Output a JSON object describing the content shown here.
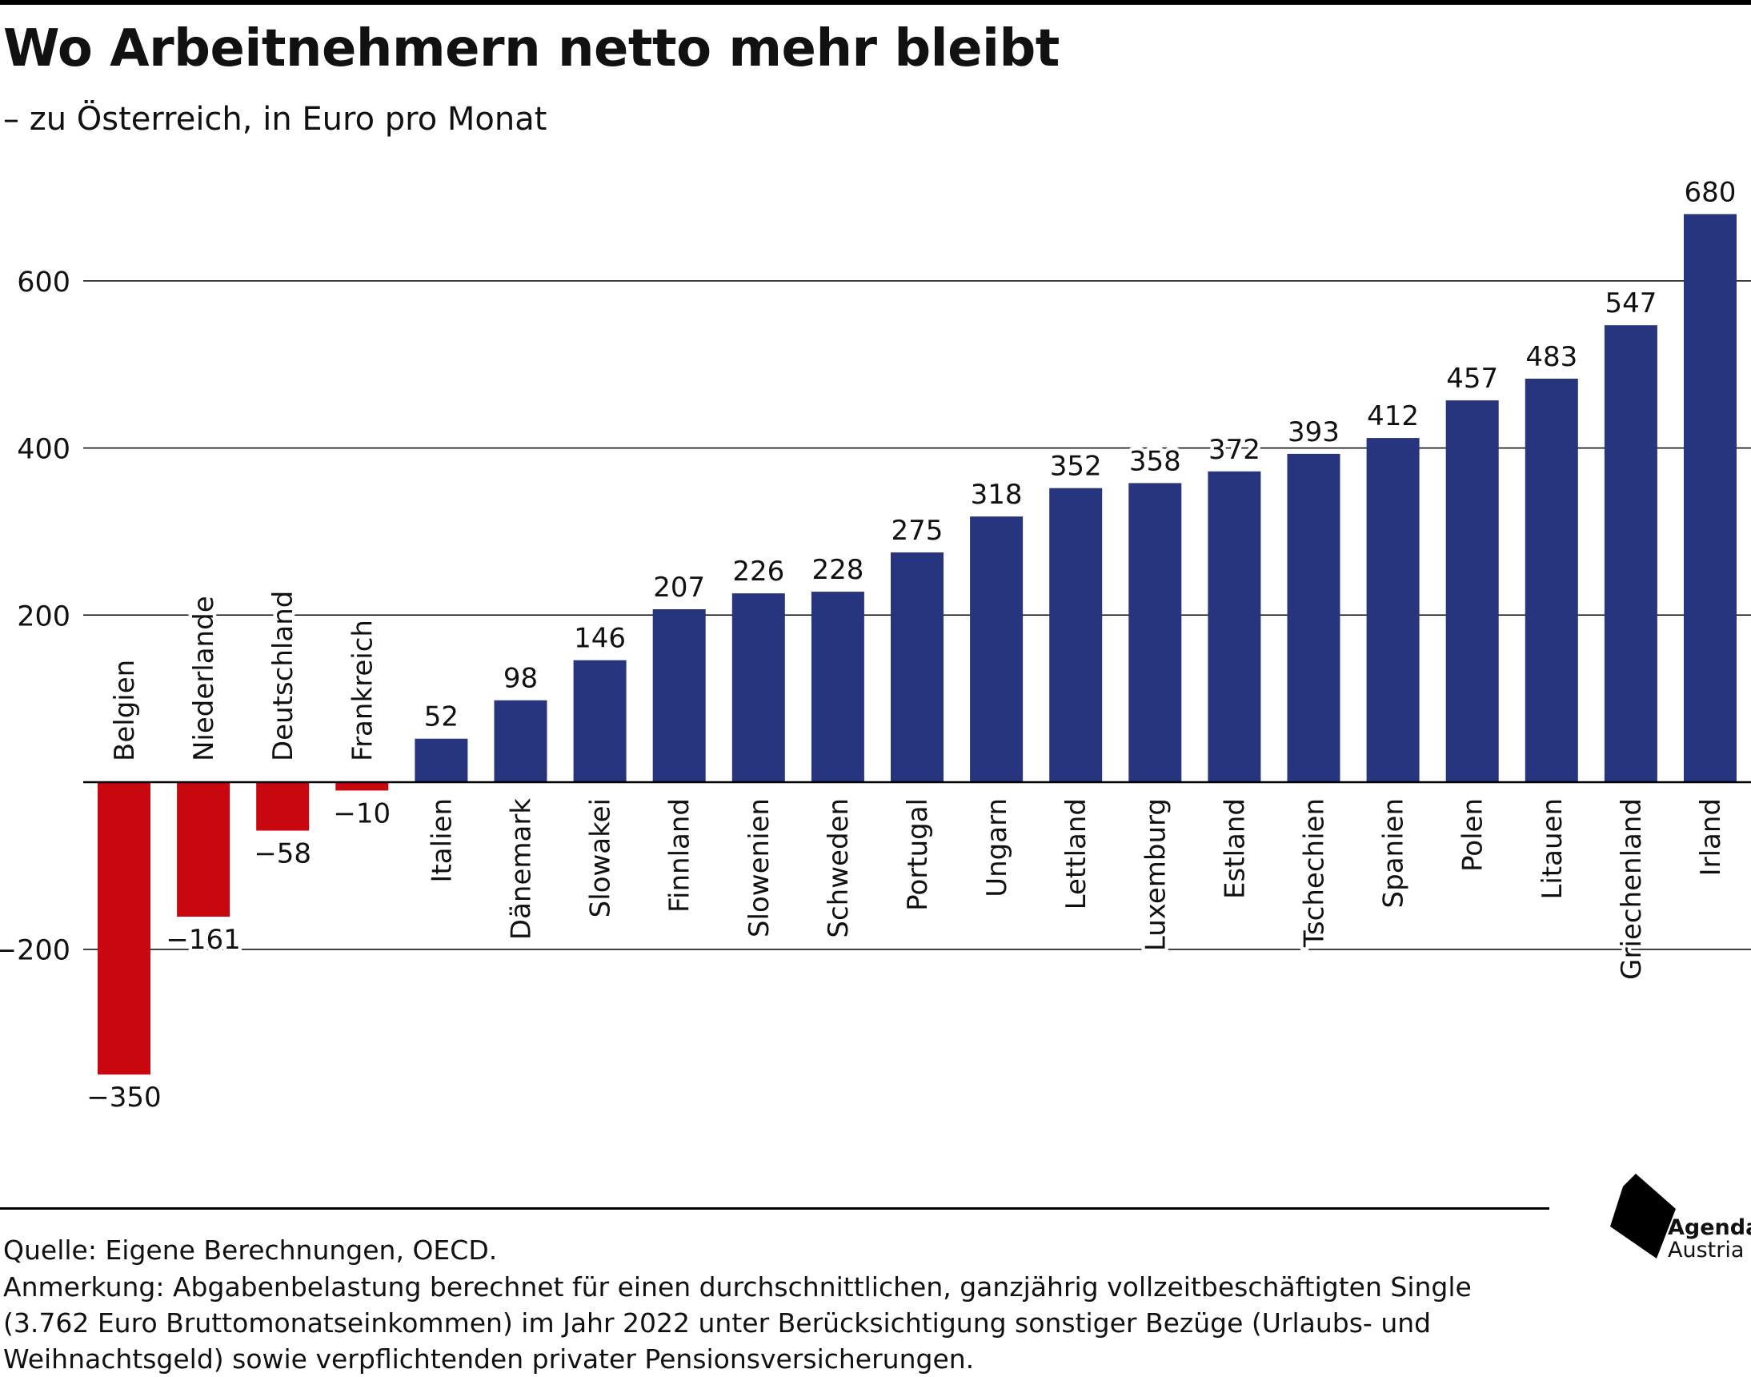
{
  "header": {
    "title": "Wo Arbeitnehmern netto mehr bleibt",
    "subtitle": "– zu Österreich, in Euro pro Monat"
  },
  "footer": {
    "source": "Quelle: Eigene Berechnungen, OECD.",
    "note": "Anmerkung: Abgabenbelastung berechnet für einen durchschnittlichen, ganzjährig vollzeitbeschäftigten Single (3.762 Euro Bruttomonatseinkommen) im Jahr 2022 unter Berücksichtigung sonstiger Bezüge (Urlaubs- und Weihnachtsgeld) sowie verpflichtenden privater Pensionsversicherungen."
  },
  "logo": {
    "line1": "Agenda",
    "line2": "Austria"
  },
  "colors": {
    "positive": "#27347e",
    "negative": "#c8070e",
    "grid": "#000000"
  },
  "chart_data": {
    "type": "bar",
    "title": "Wo Arbeitnehmern netto mehr bleibt",
    "subtitle": "– zu Österreich, in Euro pro Monat",
    "xlabel": "",
    "ylabel": "",
    "ylim": [
      -400,
      700
    ],
    "yticks": [
      -200,
      200,
      400,
      600
    ],
    "ytick_labels": [
      "−200",
      "200",
      "400",
      "600"
    ],
    "grid": true,
    "legend": "none",
    "categories": [
      "Belgien",
      "Niederlande",
      "Deutschland",
      "Frankreich",
      "Italien",
      "Dänemark",
      "Slowakei",
      "Finnland",
      "Slowenien",
      "Schweden",
      "Portugal",
      "Ungarn",
      "Lettland",
      "Luxemburg",
      "Estland",
      "Tschechien",
      "Spanien",
      "Polen",
      "Litauen",
      "Griechenland",
      "Irland"
    ],
    "values": [
      -350,
      -161,
      -58,
      -10,
      52,
      98,
      146,
      207,
      226,
      228,
      275,
      318,
      352,
      358,
      372,
      393,
      412,
      457,
      483,
      547,
      680
    ],
    "value_labels": [
      "−350",
      "−161",
      "−58",
      "−10",
      "52",
      "98",
      "146",
      "207",
      "226",
      "228",
      "275",
      "318",
      "352",
      "358",
      "372",
      "393",
      "412",
      "457",
      "483",
      "547",
      "680"
    ]
  }
}
